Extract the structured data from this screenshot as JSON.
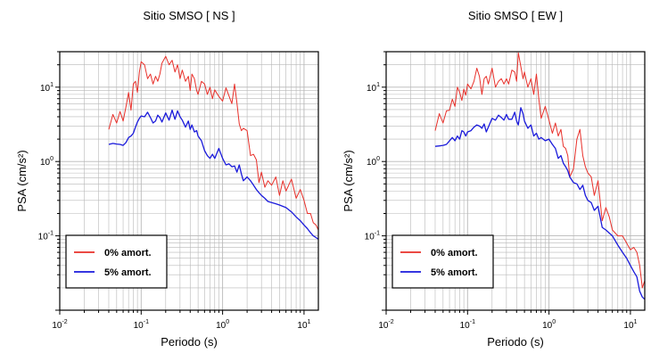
{
  "colors": {
    "undamped": "#e8302a",
    "damped": "#1a1adb",
    "grid": "#b8b8b8",
    "axis": "#000000"
  },
  "chart_data": [
    {
      "type": "line",
      "title": "Sitio SMSO [ NS ]",
      "xlabel": "Periodo (s)",
      "ylabel": "PSA (cm/s²)",
      "x_scale": "log",
      "y_scale": "log",
      "xlim": [
        0.01,
        15
      ],
      "ylim": [
        0.01,
        30
      ],
      "grid": true,
      "legend_position": "bottom-left",
      "x_tick_labels": [
        {
          "value": 0.01,
          "base": "10",
          "exp": "-2"
        },
        {
          "value": 0.1,
          "base": "10",
          "exp": "-1"
        },
        {
          "value": 1,
          "base": "10",
          "exp": "0"
        },
        {
          "value": 10,
          "base": "10",
          "exp": "1"
        }
      ],
      "y_tick_labels": [
        {
          "value": 0.1,
          "base": "10",
          "exp": "-1"
        },
        {
          "value": 1,
          "base": "10",
          "exp": "0"
        },
        {
          "value": 10,
          "base": "10",
          "exp": "1"
        }
      ],
      "series": [
        {
          "name": "0% amort.",
          "color": "#e8302a",
          "x": [
            0.04,
            0.045,
            0.05,
            0.055,
            0.06,
            0.065,
            0.07,
            0.075,
            0.08,
            0.085,
            0.09,
            0.095,
            0.1,
            0.11,
            0.12,
            0.13,
            0.14,
            0.15,
            0.16,
            0.17,
            0.18,
            0.2,
            0.22,
            0.24,
            0.26,
            0.28,
            0.3,
            0.32,
            0.35,
            0.38,
            0.4,
            0.42,
            0.45,
            0.48,
            0.5,
            0.55,
            0.6,
            0.65,
            0.7,
            0.75,
            0.8,
            0.9,
            1.0,
            1.1,
            1.2,
            1.3,
            1.4,
            1.5,
            1.6,
            1.7,
            1.8,
            2.0,
            2.2,
            2.4,
            2.6,
            2.8,
            3.0,
            3.3,
            3.6,
            4.0,
            4.5,
            5.0,
            5.5,
            6.0,
            7.0,
            8.0,
            9.0,
            10,
            11,
            12,
            13,
            14,
            15
          ],
          "y": [
            2.7,
            4.3,
            3.3,
            4.7,
            3.5,
            5.4,
            8.5,
            4.9,
            11,
            12,
            8.5,
            16,
            22,
            20,
            13,
            15,
            11,
            14,
            12,
            15,
            21,
            26,
            20,
            23,
            16,
            20,
            13,
            17,
            12,
            14,
            9,
            15,
            13,
            9,
            8,
            12,
            11,
            8,
            10,
            7,
            9.2,
            7.5,
            6.5,
            9.8,
            7.6,
            6,
            11,
            6.1,
            3.2,
            2.6,
            2.8,
            2.6,
            1.2,
            1.25,
            1.05,
            0.52,
            0.72,
            0.45,
            0.55,
            0.48,
            0.62,
            0.35,
            0.55,
            0.4,
            0.58,
            0.32,
            0.42,
            0.3,
            0.2,
            0.2,
            0.15,
            0.14,
            0.12
          ]
        },
        {
          "name": "5% amort.",
          "color": "#1a1adb",
          "x": [
            0.04,
            0.045,
            0.05,
            0.055,
            0.06,
            0.065,
            0.07,
            0.075,
            0.08,
            0.085,
            0.09,
            0.095,
            0.1,
            0.11,
            0.12,
            0.13,
            0.14,
            0.15,
            0.16,
            0.17,
            0.18,
            0.2,
            0.22,
            0.24,
            0.26,
            0.28,
            0.3,
            0.32,
            0.35,
            0.38,
            0.4,
            0.42,
            0.45,
            0.48,
            0.5,
            0.55,
            0.6,
            0.65,
            0.7,
            0.75,
            0.8,
            0.9,
            1.0,
            1.1,
            1.2,
            1.3,
            1.4,
            1.5,
            1.6,
            1.7,
            1.8,
            2.0,
            2.2,
            2.4,
            2.6,
            2.8,
            3.0,
            3.3,
            3.6,
            4.0,
            4.5,
            5.0,
            6.0,
            7.0,
            8.0,
            9.0,
            10,
            11,
            12,
            13,
            14,
            15
          ],
          "y": [
            1.7,
            1.75,
            1.72,
            1.7,
            1.65,
            1.8,
            2.1,
            2.2,
            2.4,
            2.9,
            3.4,
            3.8,
            4.1,
            4.0,
            4.6,
            3.9,
            3.3,
            3.5,
            4.2,
            3.9,
            3.4,
            4.5,
            3.6,
            4.9,
            3.7,
            4.8,
            4.0,
            3.6,
            2.9,
            3.5,
            2.7,
            3.1,
            2.5,
            2.6,
            2.2,
            1.9,
            1.4,
            1.2,
            1.1,
            1.25,
            1.1,
            1.5,
            1.1,
            0.9,
            0.93,
            0.85,
            0.87,
            0.72,
            0.9,
            0.68,
            0.55,
            0.62,
            0.55,
            0.48,
            0.42,
            0.38,
            0.35,
            0.32,
            0.29,
            0.28,
            0.27,
            0.26,
            0.24,
            0.21,
            0.18,
            0.16,
            0.14,
            0.125,
            0.11,
            0.1,
            0.095,
            0.09
          ]
        }
      ]
    },
    {
      "type": "line",
      "title": "Sitio SMSO [ EW ]",
      "xlabel": "Periodo (s)",
      "ylabel": "PSA (cm/s²)",
      "x_scale": "log",
      "y_scale": "log",
      "xlim": [
        0.01,
        15
      ],
      "ylim": [
        0.01,
        30
      ],
      "grid": true,
      "legend_position": "bottom-left",
      "x_tick_labels": [
        {
          "value": 0.01,
          "base": "10",
          "exp": "-2"
        },
        {
          "value": 0.1,
          "base": "10",
          "exp": "-1"
        },
        {
          "value": 1,
          "base": "10",
          "exp": "0"
        },
        {
          "value": 10,
          "base": "10",
          "exp": "1"
        }
      ],
      "y_tick_labels": [
        {
          "value": 0.1,
          "base": "10",
          "exp": "-1"
        },
        {
          "value": 1,
          "base": "10",
          "exp": "0"
        },
        {
          "value": 10,
          "base": "10",
          "exp": "1"
        }
      ],
      "series": [
        {
          "name": "0% amort.",
          "color": "#e8302a",
          "x": [
            0.04,
            0.045,
            0.05,
            0.055,
            0.06,
            0.065,
            0.07,
            0.075,
            0.08,
            0.085,
            0.09,
            0.095,
            0.1,
            0.11,
            0.12,
            0.13,
            0.14,
            0.15,
            0.16,
            0.17,
            0.18,
            0.2,
            0.22,
            0.24,
            0.26,
            0.28,
            0.3,
            0.32,
            0.35,
            0.38,
            0.4,
            0.42,
            0.45,
            0.48,
            0.5,
            0.55,
            0.6,
            0.65,
            0.7,
            0.75,
            0.8,
            0.9,
            1.0,
            1.1,
            1.2,
            1.3,
            1.4,
            1.5,
            1.6,
            1.7,
            1.8,
            2.0,
            2.2,
            2.4,
            2.6,
            2.8,
            3.0,
            3.3,
            3.6,
            4.0,
            4.5,
            5.0,
            5.5,
            6.0,
            7.0,
            8.0,
            9.0,
            10,
            11,
            12,
            13,
            14,
            15
          ],
          "y": [
            2.6,
            4.4,
            3.3,
            4.8,
            4.9,
            6.9,
            5.5,
            10,
            8.5,
            6.6,
            9.4,
            7.8,
            11,
            9.5,
            12,
            18,
            14,
            8,
            13,
            14,
            11,
            18,
            10,
            12,
            13,
            11,
            13,
            11,
            17,
            16,
            12,
            29,
            19,
            13,
            16,
            10,
            13,
            8,
            15,
            7,
            3.8,
            5.5,
            3.6,
            2.4,
            3.3,
            2.2,
            2.7,
            1.6,
            1.5,
            1.2,
            0.62,
            0.8,
            2.0,
            2.7,
            1.2,
            0.85,
            0.7,
            0.62,
            0.35,
            0.55,
            0.16,
            0.24,
            0.18,
            0.12,
            0.1,
            0.1,
            0.08,
            0.065,
            0.07,
            0.06,
            0.04,
            0.02,
            0.025
          ]
        },
        {
          "name": "5% amort.",
          "color": "#1a1adb",
          "x": [
            0.04,
            0.045,
            0.05,
            0.055,
            0.06,
            0.065,
            0.07,
            0.075,
            0.08,
            0.085,
            0.09,
            0.095,
            0.1,
            0.11,
            0.12,
            0.13,
            0.14,
            0.15,
            0.16,
            0.17,
            0.18,
            0.2,
            0.22,
            0.24,
            0.26,
            0.28,
            0.3,
            0.32,
            0.35,
            0.38,
            0.4,
            0.42,
            0.45,
            0.48,
            0.5,
            0.55,
            0.6,
            0.65,
            0.7,
            0.75,
            0.8,
            0.9,
            1.0,
            1.1,
            1.2,
            1.3,
            1.4,
            1.5,
            1.6,
            1.7,
            1.8,
            2.0,
            2.2,
            2.4,
            2.6,
            2.8,
            3.0,
            3.3,
            3.6,
            4.0,
            4.5,
            5.0,
            6.0,
            7.0,
            8.0,
            9.0,
            10,
            11,
            12,
            13,
            14,
            15
          ],
          "y": [
            1.6,
            1.62,
            1.65,
            1.7,
            1.9,
            2.1,
            1.9,
            2.2,
            2.0,
            2.6,
            2.5,
            2.2,
            2.5,
            2.6,
            2.9,
            3.1,
            3.0,
            2.8,
            3.2,
            2.5,
            2.9,
            3.8,
            3.6,
            4.2,
            3.9,
            3.6,
            4.3,
            3.7,
            3.7,
            4.6,
            3.5,
            3.1,
            5.3,
            4.4,
            3.5,
            2.8,
            3.1,
            2.2,
            2.4,
            2.0,
            2.1,
            1.9,
            2.0,
            1.7,
            1.5,
            1.1,
            1.2,
            0.95,
            0.85,
            0.75,
            0.62,
            0.52,
            0.5,
            0.42,
            0.48,
            0.35,
            0.3,
            0.28,
            0.22,
            0.25,
            0.13,
            0.12,
            0.1,
            0.075,
            0.06,
            0.05,
            0.04,
            0.033,
            0.028,
            0.018,
            0.015,
            0.014
          ]
        }
      ]
    }
  ]
}
